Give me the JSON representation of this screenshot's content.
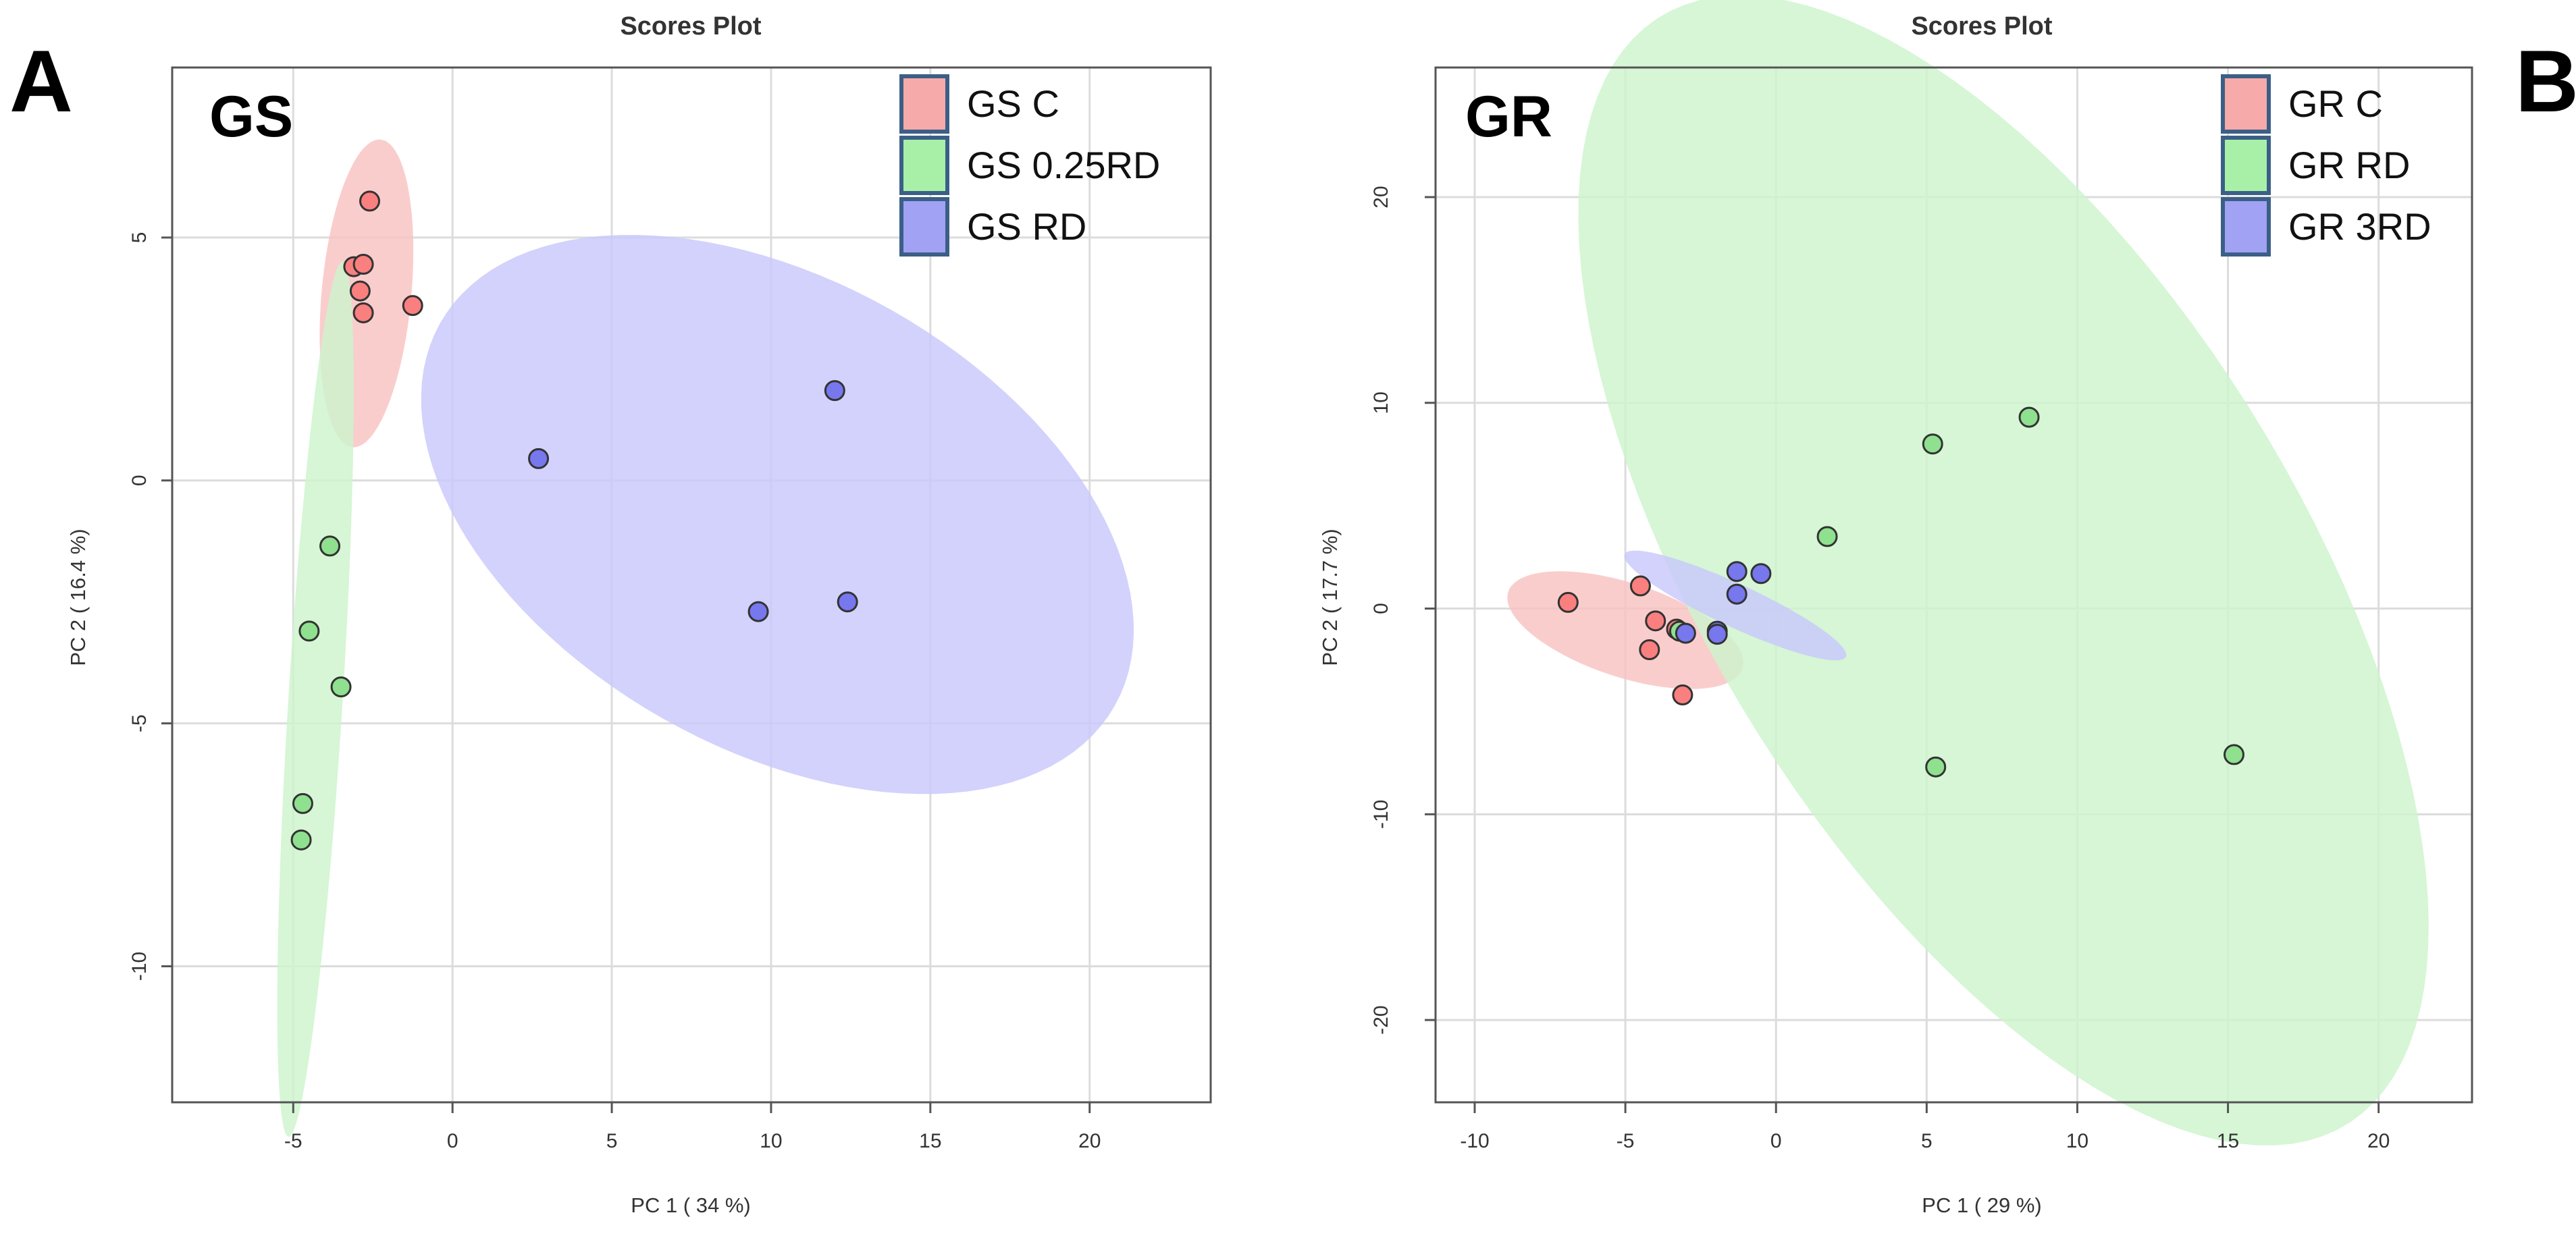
{
  "chart_data": [
    {
      "type": "scatter",
      "panel_label": "A",
      "group_label": "GS",
      "title": "Scores Plot",
      "xlabel": "PC 1 ( 34 %)",
      "ylabel": "PC 2 ( 16.4 %)",
      "xlim": [
        -8.8,
        23.8
      ],
      "ylim": [
        -12.8,
        8.5
      ],
      "xticks": [
        -5,
        0,
        5,
        10,
        15,
        20
      ],
      "yticks": [
        -10,
        -5,
        0,
        5
      ],
      "xtick_labels": [
        "-5",
        "0",
        "5",
        "10",
        "15",
        "20"
      ],
      "ytick_labels": [
        "-10",
        "-5",
        "0",
        "5"
      ],
      "legend_position": "top-right",
      "series": [
        {
          "name": "GS C",
          "fill": "#fa7f7f",
          "legend_fill": "#f7aaaa",
          "ellipse_fill": "#f9c2c2",
          "ellipse": {
            "cx": -2.7,
            "cy": 3.85,
            "rx": 3.2,
            "ry": 1.4,
            "angle": 81
          },
          "points": [
            [
              -2.6,
              5.75
            ],
            [
              -3.1,
              4.4
            ],
            [
              -2.8,
              4.45
            ],
            [
              -2.9,
              3.9
            ],
            [
              -2.8,
              3.45
            ],
            [
              -1.25,
              3.6
            ]
          ]
        },
        {
          "name": "GS 0.25RD",
          "fill": "#8fe08f",
          "legend_fill": "#a8f0a8",
          "ellipse_fill": "#cdf4cd",
          "ellipse": {
            "cx": -4.3,
            "cy": -4.5,
            "rx": 9.05,
            "ry": 0.85,
            "angle": 84.6
          },
          "points": [
            [
              -3.85,
              -1.35
            ],
            [
              -4.5,
              -3.1
            ],
            [
              -3.5,
              -4.25
            ],
            [
              -4.7,
              -6.65
            ],
            [
              -4.75,
              -7.4
            ]
          ]
        },
        {
          "name": "GS RD",
          "fill": "#7777ee",
          "legend_fill": "#a2a2f4",
          "ellipse_fill": "#c8c8fb",
          "ellipse": {
            "cx": 10.2,
            "cy": -0.7,
            "rx": 11.5,
            "ry": 5.1,
            "angle": -15
          },
          "points": [
            [
              2.7,
              0.45
            ],
            [
              12.0,
              1.85
            ],
            [
              9.6,
              -2.7
            ],
            [
              12.4,
              -2.5
            ]
          ]
        }
      ]
    },
    {
      "type": "scatter",
      "panel_label": "B",
      "group_label": "GR",
      "title": "Scores Plot",
      "xlabel": "PC 1 ( 29 %)",
      "ylabel": "PC 2 ( 17.7 %)",
      "xlim": [
        -11.3,
        23.1
      ],
      "ylim": [
        -24.0,
        26.3
      ],
      "xticks": [
        -10,
        -5,
        0,
        5,
        10,
        15,
        20
      ],
      "yticks": [
        -20,
        -10,
        0,
        10,
        20
      ],
      "xtick_labels": [
        "-10",
        "-5",
        "0",
        "5",
        "10",
        "15",
        "20"
      ],
      "ytick_labels": [
        "-20",
        "-10",
        "0",
        "10",
        "20"
      ],
      "legend_position": "top-right",
      "series": [
        {
          "name": "GR C",
          "fill": "#fa7f7f",
          "legend_fill": "#f7aaaa",
          "ellipse_fill": "#f9c2c2",
          "ellipse": {
            "cx": -5.0,
            "cy": -1.05,
            "rx": 4.35,
            "ry": 2.15,
            "angle": -30
          },
          "points": [
            [
              -6.9,
              0.3
            ],
            [
              -4.5,
              1.1
            ],
            [
              -4.0,
              -0.6
            ],
            [
              -3.3,
              -1.0
            ],
            [
              -4.2,
              -2.0
            ],
            [
              -3.1,
              -4.2
            ]
          ]
        },
        {
          "name": "GR RD",
          "fill": "#8fe08f",
          "legend_fill": "#a8f0a8",
          "ellipse_fill": "#cdf4cd",
          "ellipse": {
            "cx": 7.55,
            "cy": 1.85,
            "rx": 29.5,
            "ry": 10.5,
            "angle": -70
          },
          "points": [
            [
              -3.2,
              -1.1
            ],
            [
              1.7,
              3.5
            ],
            [
              5.2,
              8.0
            ],
            [
              8.4,
              9.3
            ],
            [
              5.3,
              -7.7
            ],
            [
              15.2,
              -7.1
            ]
          ]
        },
        {
          "name": "GR 3RD",
          "fill": "#7777ee",
          "legend_fill": "#a2a2f4",
          "ellipse_fill": "#c8c8fb",
          "ellipse": {
            "cx": -1.35,
            "cy": 0.15,
            "rx": 4.45,
            "ry": 0.95,
            "angle": -35
          },
          "points": [
            [
              -1.3,
              1.8
            ],
            [
              -0.5,
              1.7
            ],
            [
              -1.3,
              0.7
            ],
            [
              -1.95,
              -1.1
            ],
            [
              -1.95,
              -1.25
            ],
            [
              -3.0,
              -1.2
            ]
          ]
        }
      ]
    }
  ]
}
